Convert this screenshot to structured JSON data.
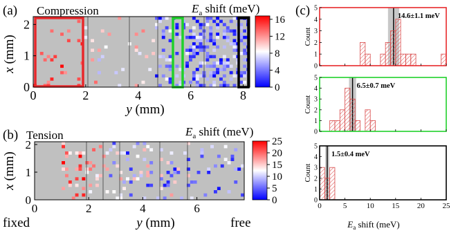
{
  "panel_labels": {
    "a": "(a)",
    "b": "(b)",
    "c": "(c)"
  },
  "panel_a": {
    "title": "Compression",
    "colorbar_title_main": "E",
    "colorbar_title_sub": "a",
    "colorbar_title_rest": " shift (meV)",
    "xlabel_var": "y",
    "xlabel_unit": " (mm)",
    "ylabel_var": "x",
    "ylabel_unit": " (mm)",
    "xticks": [
      "0",
      "2",
      "4",
      "6",
      "8"
    ],
    "yticks": [
      "0",
      "1",
      "2"
    ],
    "colorbar_ticks": [
      "0",
      "4",
      "8",
      "12",
      "16"
    ]
  },
  "panel_b": {
    "title": "Tension",
    "colorbar_title_main": "E",
    "colorbar_title_sub": "a",
    "colorbar_title_rest": " shift (meV)",
    "xlabel_var": "y",
    "xlabel_unit": " (mm)",
    "ylabel_var": "x",
    "ylabel_unit": " (mm)",
    "xticks": [
      "0",
      "2",
      "4",
      "6"
    ],
    "yticks": [
      "0",
      "1",
      "2"
    ],
    "colorbar_ticks": [
      "0",
      "5",
      "10",
      "15",
      "20",
      "25"
    ],
    "left_end_label": "fixed",
    "right_end_label": "free"
  },
  "panel_c": {
    "ylabel": "Count",
    "xlabel_main": "E",
    "xlabel_sub": "a",
    "xlabel_rest": " shift (meV)",
    "xticks": [
      "0",
      "5",
      "10",
      "15",
      "20",
      "25"
    ],
    "yticks": [
      "0",
      "1",
      "2",
      "3",
      "4",
      "5"
    ],
    "histograms": [
      {
        "label": "14.6±1.1 meV",
        "frame_color": "#e8282b",
        "mean": 14.6,
        "sd": 1.1,
        "bins": [
          {
            "x": 8.5,
            "count": 2
          },
          {
            "x": 9.5,
            "count": 1
          },
          {
            "x": 12.5,
            "count": 1
          },
          {
            "x": 13.5,
            "count": 2
          },
          {
            "x": 14.5,
            "count": 3
          },
          {
            "x": 15.5,
            "count": 4
          },
          {
            "x": 16.5,
            "count": 1
          },
          {
            "x": 17.5,
            "count": 1
          },
          {
            "x": 18.5,
            "count": 1
          },
          {
            "x": 24.5,
            "count": 1
          }
        ]
      },
      {
        "label": "6.5±0.7 meV",
        "frame_color": "#1fd12b",
        "mean": 6.5,
        "sd": 0.7,
        "bins": [
          {
            "x": 2.5,
            "count": 1
          },
          {
            "x": 3.5,
            "count": 1
          },
          {
            "x": 4.5,
            "count": 2
          },
          {
            "x": 5.5,
            "count": 4
          },
          {
            "x": 6.5,
            "count": 3
          },
          {
            "x": 7.5,
            "count": 1
          },
          {
            "x": 9.5,
            "count": 2
          },
          {
            "x": 10.5,
            "count": 1
          }
        ]
      },
      {
        "label": "1.5±0.4 meV",
        "frame_color": "#000000",
        "mean": 1.5,
        "sd": 0.4,
        "bins": [
          {
            "x": 0.5,
            "count": 3
          },
          {
            "x": 1.5,
            "count": 2
          },
          {
            "x": 2.5,
            "count": 3
          }
        ]
      }
    ]
  },
  "colors": {
    "cbar_low": "#0000ff",
    "cbar_mid": "#ffffff",
    "cbar_high": "#ff0000",
    "background_cell": "#c0c0c0",
    "hatch": "#d84848"
  }
}
